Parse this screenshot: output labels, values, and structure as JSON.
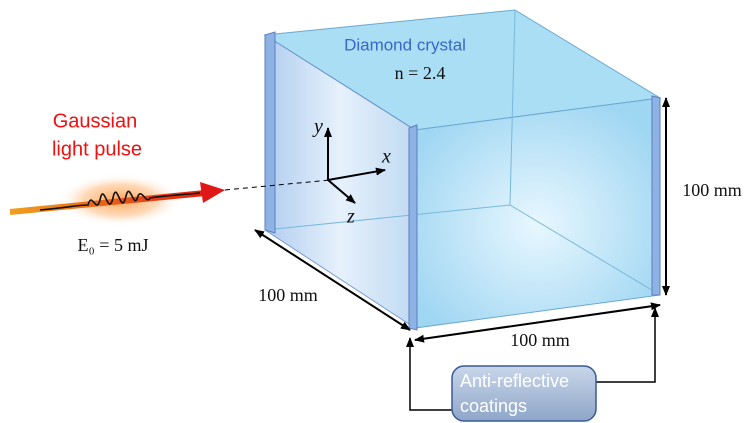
{
  "pulse": {
    "title_lines": [
      "Gaussian",
      "light pulse"
    ],
    "energy": "E₀ = 5 mJ"
  },
  "crystal": {
    "title": "Diamond crystal",
    "index": "n = 2.4"
  },
  "axes": {
    "y": "y",
    "x": "x",
    "z": "z"
  },
  "dimensions": {
    "depth": "100 mm",
    "width": "100 mm",
    "height": "100 mm"
  },
  "callout": {
    "lines": [
      "Anti-reflective",
      "coatings"
    ]
  }
}
